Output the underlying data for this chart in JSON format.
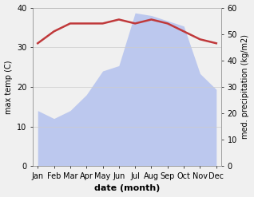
{
  "months": [
    "Jan",
    "Feb",
    "Mar",
    "Apr",
    "May",
    "Jun",
    "Jul",
    "Aug",
    "Sep",
    "Oct",
    "Nov",
    "Dec"
  ],
  "temperature": [
    31,
    34,
    36,
    36,
    36,
    37,
    36,
    37,
    36,
    34,
    32,
    31
  ],
  "precipitation": [
    21,
    18,
    21,
    27,
    36,
    38,
    58,
    57,
    55,
    53,
    35,
    29
  ],
  "temp_color": "#c0393b",
  "precip_fill_color": "#bcc8ee",
  "ylabel_left": "max temp (C)",
  "ylabel_right": "med. precipitation (kg/m2)",
  "xlabel": "date (month)",
  "ylim_left": [
    0,
    40
  ],
  "ylim_right": [
    0,
    60
  ],
  "yticks_left": [
    0,
    10,
    20,
    30,
    40
  ],
  "yticks_right": [
    0,
    10,
    20,
    30,
    40,
    50,
    60
  ],
  "bg_color": "#f0f0f0",
  "plot_bg_color": "#ffffff"
}
